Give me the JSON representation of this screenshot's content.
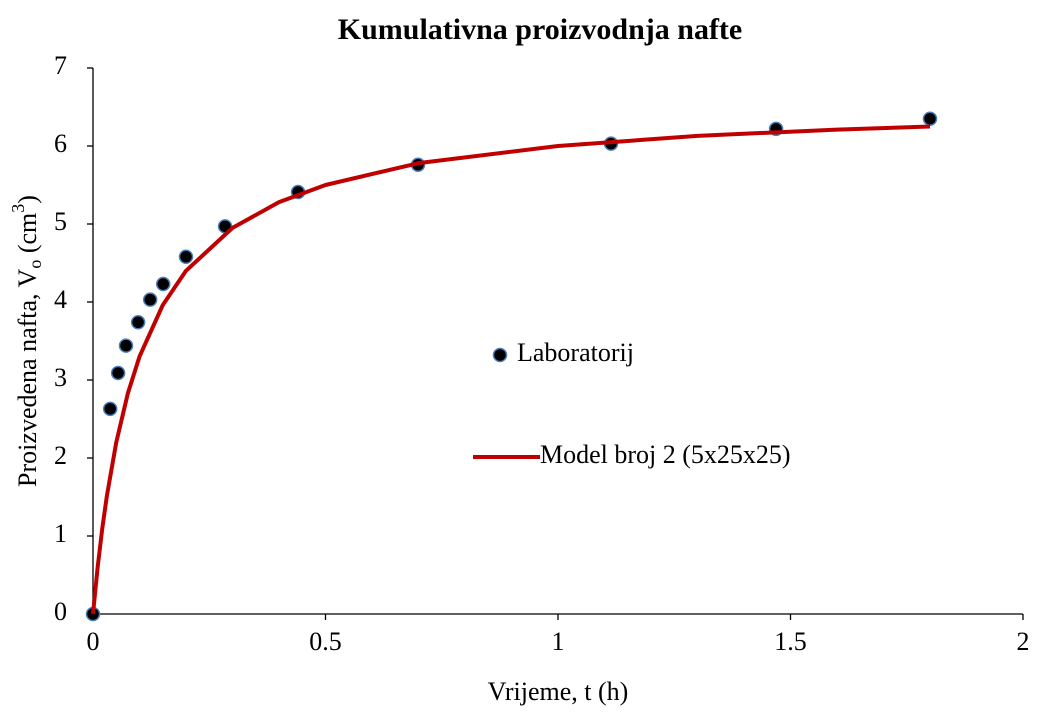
{
  "chart_data": {
    "type": "scatter",
    "title": "Kumulativna proizvodnja nafte",
    "xlabel": "Vrijeme, t (h)",
    "ylabel": [
      "Proizvedena nafta, V",
      "o",
      " (cm",
      "3",
      ")"
    ],
    "xlim": [
      0,
      2
    ],
    "xticks": [
      0,
      0.5,
      1,
      1.5,
      2
    ],
    "ylim": [
      0,
      7
    ],
    "yticks": [
      0,
      1,
      2,
      3,
      4,
      5,
      6,
      7
    ],
    "grid": false,
    "series": [
      {
        "name": "Laboratorij",
        "type": "scatter",
        "color": "#000000",
        "edgecolor": "#4a7ebb",
        "x": [
          0,
          0.037,
          0.054,
          0.071,
          0.097,
          0.123,
          0.151,
          0.2,
          0.284,
          0.441,
          0.699,
          1.114,
          1.469,
          1.8
        ],
        "values": [
          0,
          2.63,
          3.09,
          3.44,
          3.74,
          4.03,
          4.23,
          4.58,
          4.97,
          5.41,
          5.76,
          6.03,
          6.22,
          6.35
        ]
      },
      {
        "name": "Model broj 2 (5x25x25)",
        "type": "line",
        "color": "#c00000",
        "x": [
          0,
          0.01,
          0.02,
          0.03,
          0.05,
          0.075,
          0.1,
          0.15,
          0.2,
          0.3,
          0.4,
          0.5,
          0.7,
          1.0,
          1.3,
          1.6,
          1.8
        ],
        "values": [
          0,
          0.6,
          1.1,
          1.52,
          2.2,
          2.83,
          3.3,
          3.96,
          4.4,
          4.95,
          5.28,
          5.5,
          5.78,
          6.0,
          6.13,
          6.21,
          6.25
        ]
      }
    ]
  }
}
